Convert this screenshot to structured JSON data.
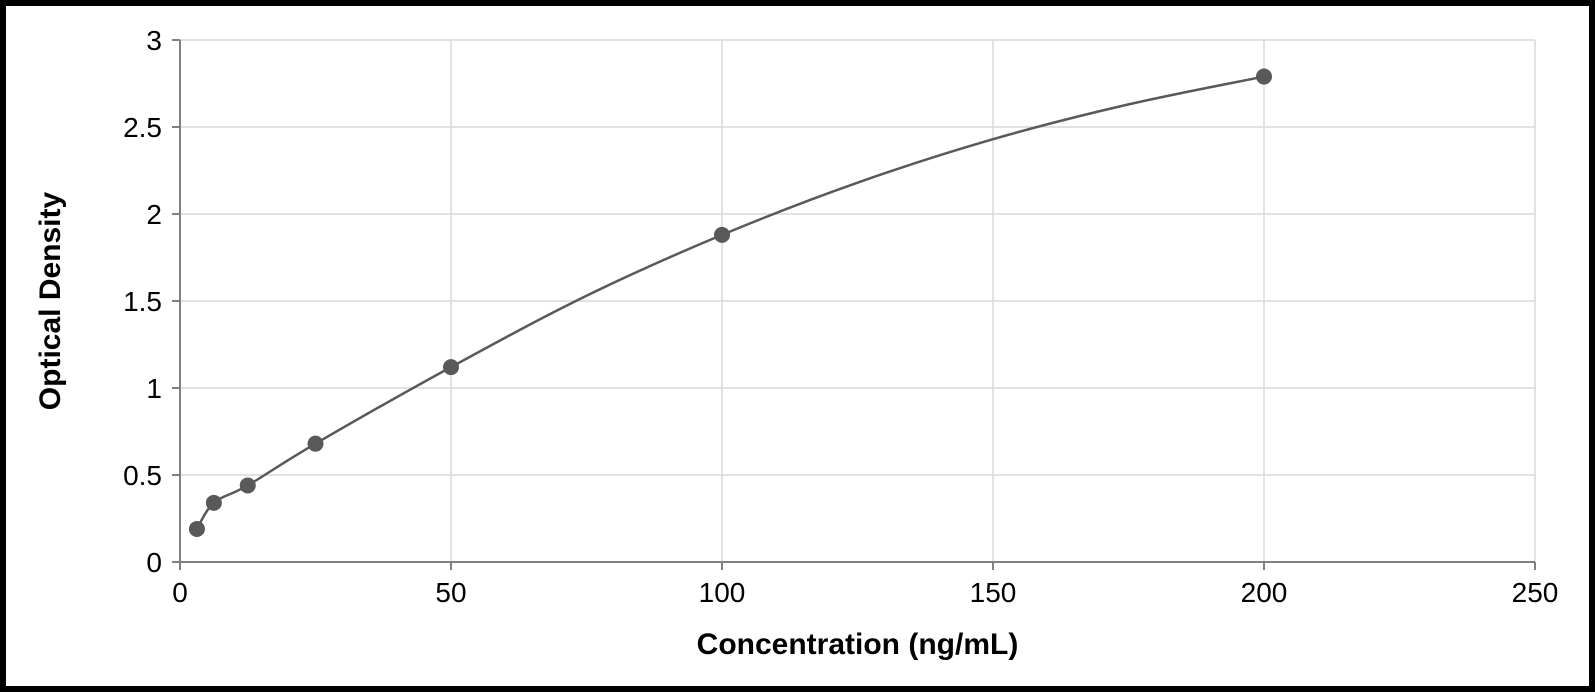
{
  "chart": {
    "type": "scatter-line",
    "xlabel": "Concentration (ng/mL)",
    "ylabel": "Optical Density",
    "xlabel_fontsize": 30,
    "ylabel_fontsize": 30,
    "tick_fontsize": 28,
    "xlim": [
      0,
      250
    ],
    "ylim": [
      0,
      3
    ],
    "xtick_step": 50,
    "ytick_step": 0.5,
    "xticks": [
      0,
      50,
      100,
      150,
      200,
      250
    ],
    "yticks": [
      0,
      0.5,
      1,
      1.5,
      2,
      2.5,
      3
    ],
    "grid_color": "#d9d9d9",
    "grid_width": 1.5,
    "axis_color": "#808080",
    "axis_width": 2,
    "background_color": "#ffffff",
    "line_color": "#595959",
    "line_width": 2.5,
    "marker_color": "#595959",
    "marker_radius": 8,
    "data": {
      "x": [
        3.125,
        6.25,
        12.5,
        25,
        50,
        100,
        200
      ],
      "y": [
        0.19,
        0.34,
        0.44,
        0.68,
        1.12,
        1.88,
        2.79
      ]
    },
    "curve": {
      "x": [
        3.125,
        6.25,
        12.5,
        25,
        50,
        75,
        100,
        125,
        150,
        175,
        200
      ],
      "y": [
        0.19,
        0.34,
        0.44,
        0.68,
        1.12,
        1.53,
        1.88,
        2.18,
        2.43,
        2.63,
        2.79
      ]
    }
  }
}
